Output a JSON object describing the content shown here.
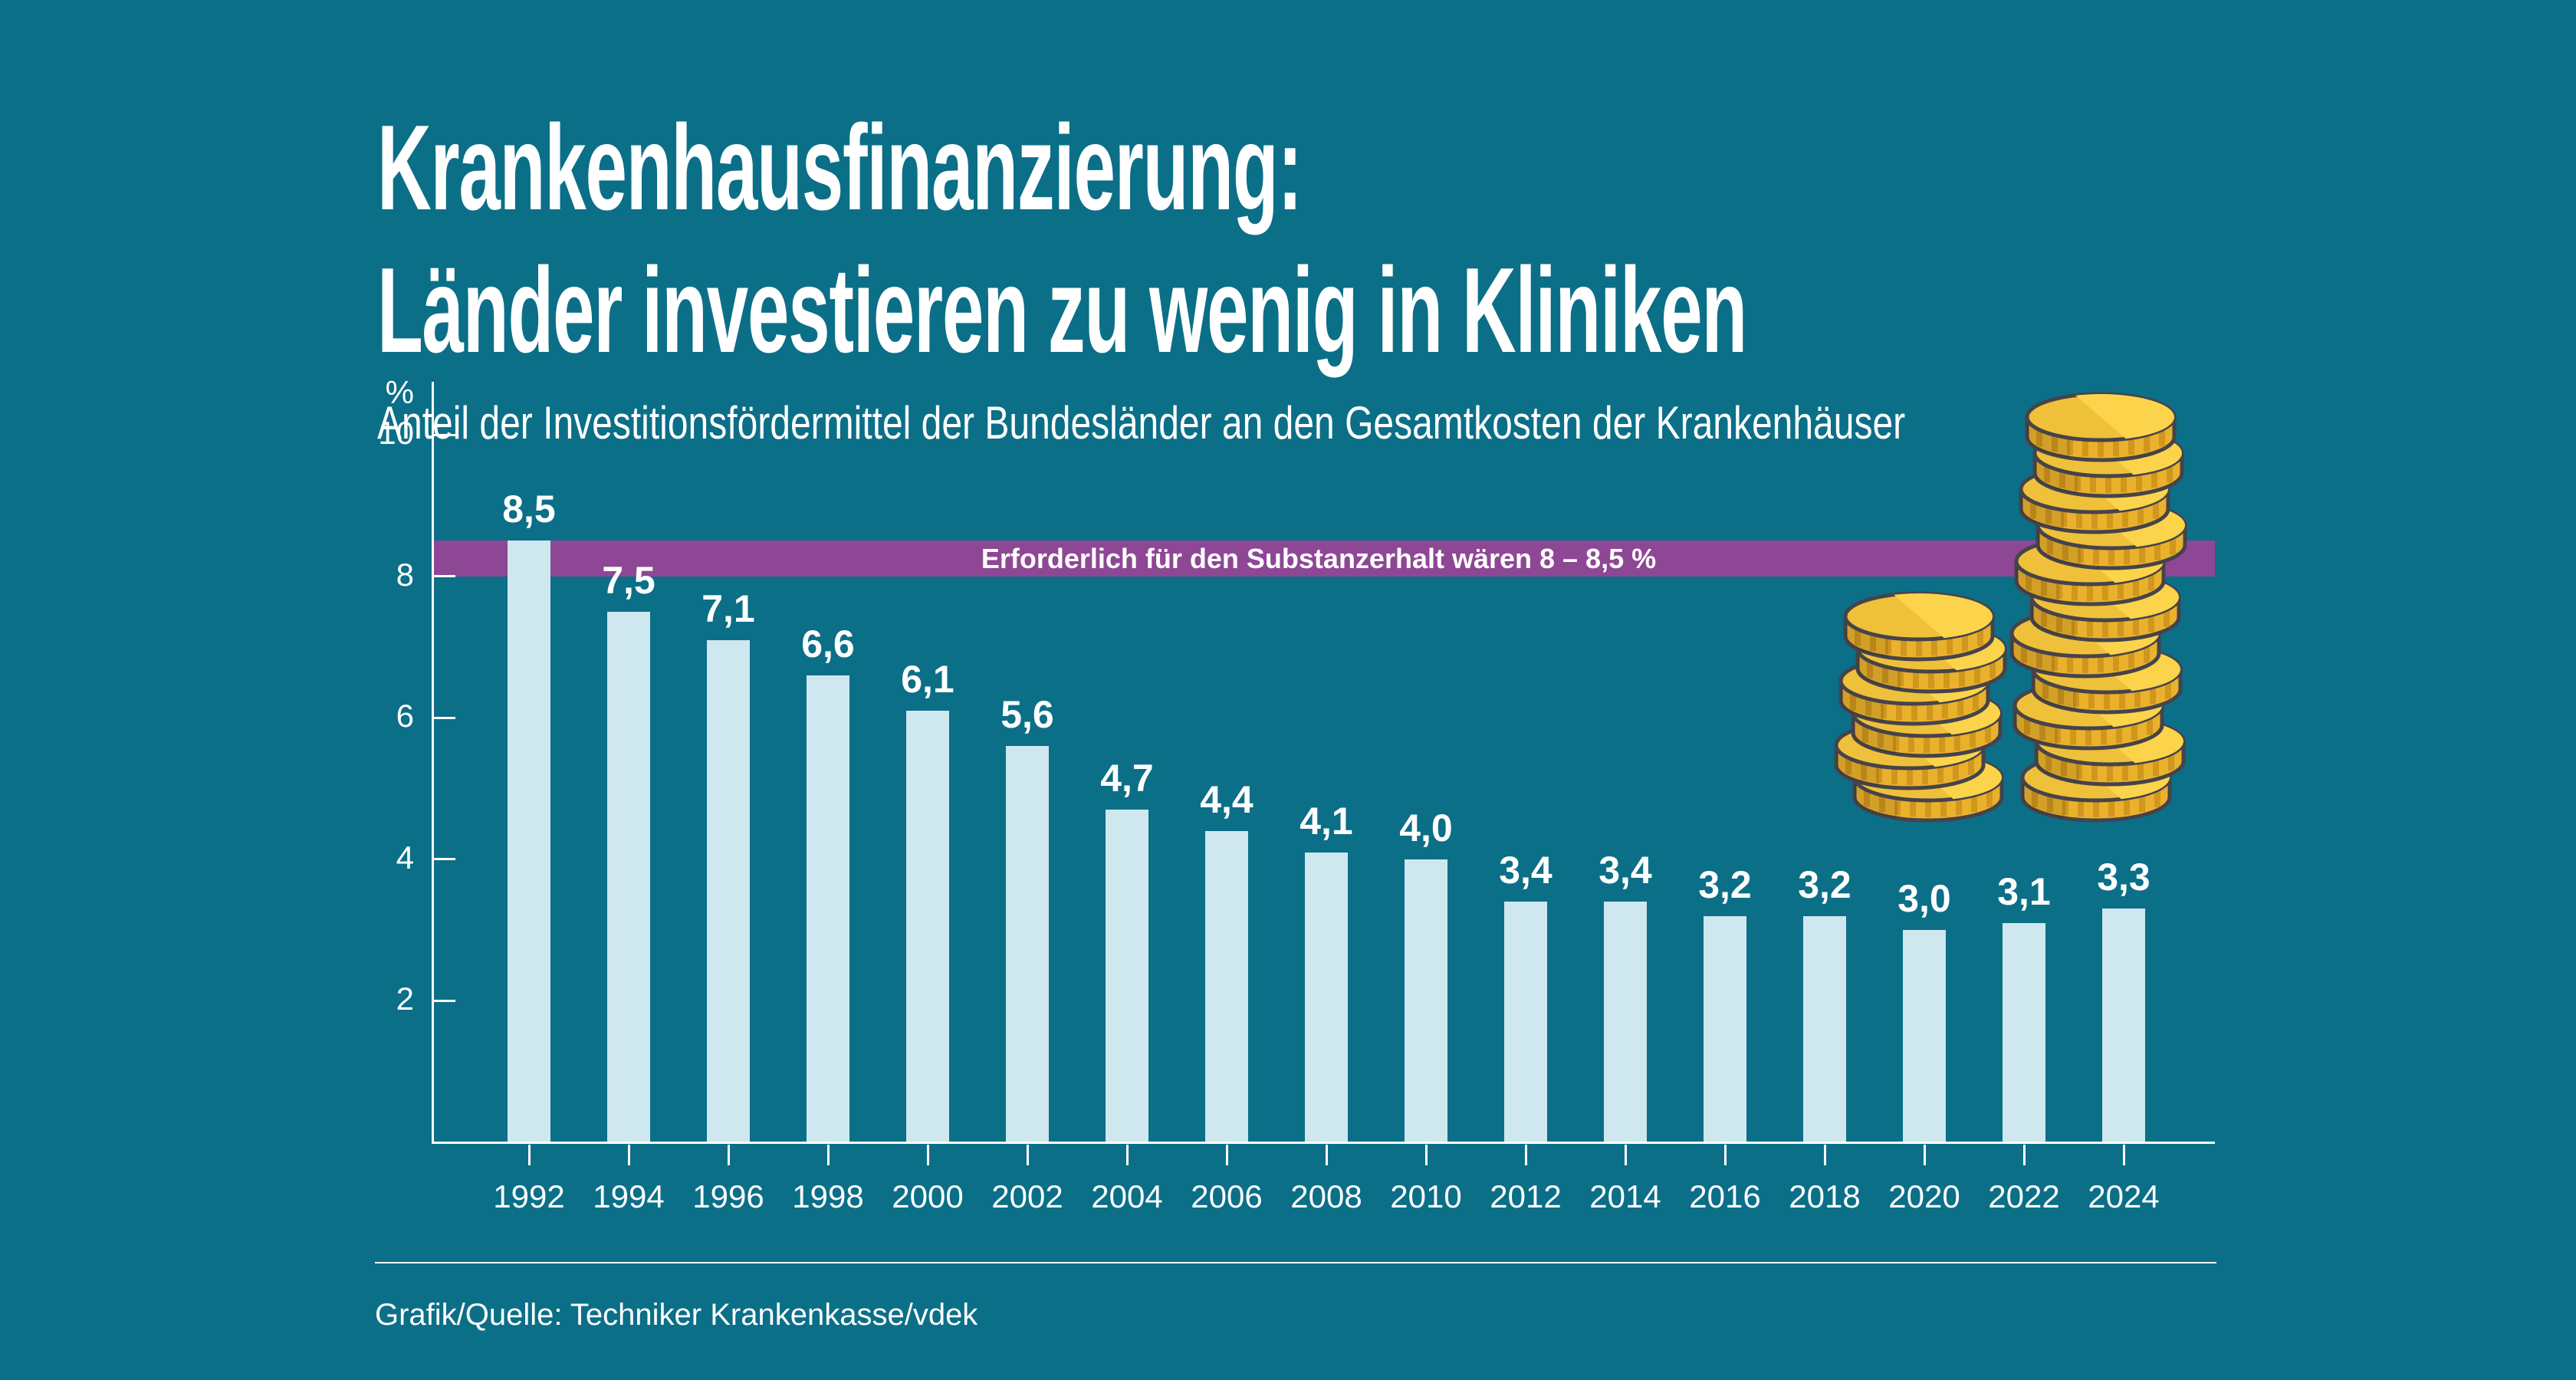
{
  "title": {
    "line1": "Krankenhausfinanzierung:",
    "line2": "Länder investieren zu wenig in Kliniken"
  },
  "subtitle": "Anteil der Investitionsfördermittel der Bundesländer an den Gesamtkosten der Krankenhäuser",
  "source": "Grafik/Quelle: Techniker Krankenkasse/vdek",
  "y_axis": {
    "unit_label": "%",
    "ticks": [
      10,
      8,
      6,
      4,
      2
    ]
  },
  "threshold_band": {
    "label": "Erforderlich für den Substanzerhalt wären 8 – 8,5 %",
    "from": 8.0,
    "to": 8.5
  },
  "chart_data": {
    "type": "bar",
    "title": "Krankenhausfinanzierung: Länder investieren zu wenig in Kliniken",
    "subtitle": "Anteil der Investitionsfördermittel der Bundesländer an den Gesamtkosten der Krankenhäuser",
    "categories": [
      "1992",
      "1994",
      "1996",
      "1998",
      "2000",
      "2002",
      "2004",
      "2006",
      "2008",
      "2010",
      "2012",
      "2014",
      "2016",
      "2018",
      "2020",
      "2022",
      "2024"
    ],
    "values": [
      8.5,
      7.5,
      7.1,
      6.6,
      6.1,
      5.6,
      4.7,
      4.4,
      4.1,
      4.0,
      3.4,
      3.4,
      3.2,
      3.2,
      3.0,
      3.1,
      3.3
    ],
    "value_labels": [
      "8,5",
      "7,5",
      "7,1",
      "6,6",
      "6,1",
      "5,6",
      "4,7",
      "4,4",
      "4,1",
      "4,0",
      "3,4",
      "3,4",
      "3,2",
      "3,2",
      "3,0",
      "3,1",
      "3,3"
    ],
    "xlabel": "",
    "ylabel": "%",
    "ylim": [
      0,
      10
    ],
    "grid": false,
    "legend": "none",
    "annotation": "Erforderlich für den Substanzerhalt wären 8 – 8,5 % (Band von 8,0 bis 8,5 %)"
  },
  "colors": {
    "background": "#0b6f88",
    "bar": "#cfe7ef",
    "band": "#8e4794",
    "text": "#ffffff",
    "axis": "#ffffff"
  },
  "illustration": {
    "name": "coin-stacks",
    "stacks": [
      {
        "id": "small",
        "coins": 6
      },
      {
        "id": "large",
        "coins": 11
      }
    ],
    "colors": {
      "outline": "#46434a",
      "face": "#fbd44c",
      "face_shade": "#efc13a",
      "side": "#eab22c",
      "ridge": "#d0961d"
    }
  }
}
